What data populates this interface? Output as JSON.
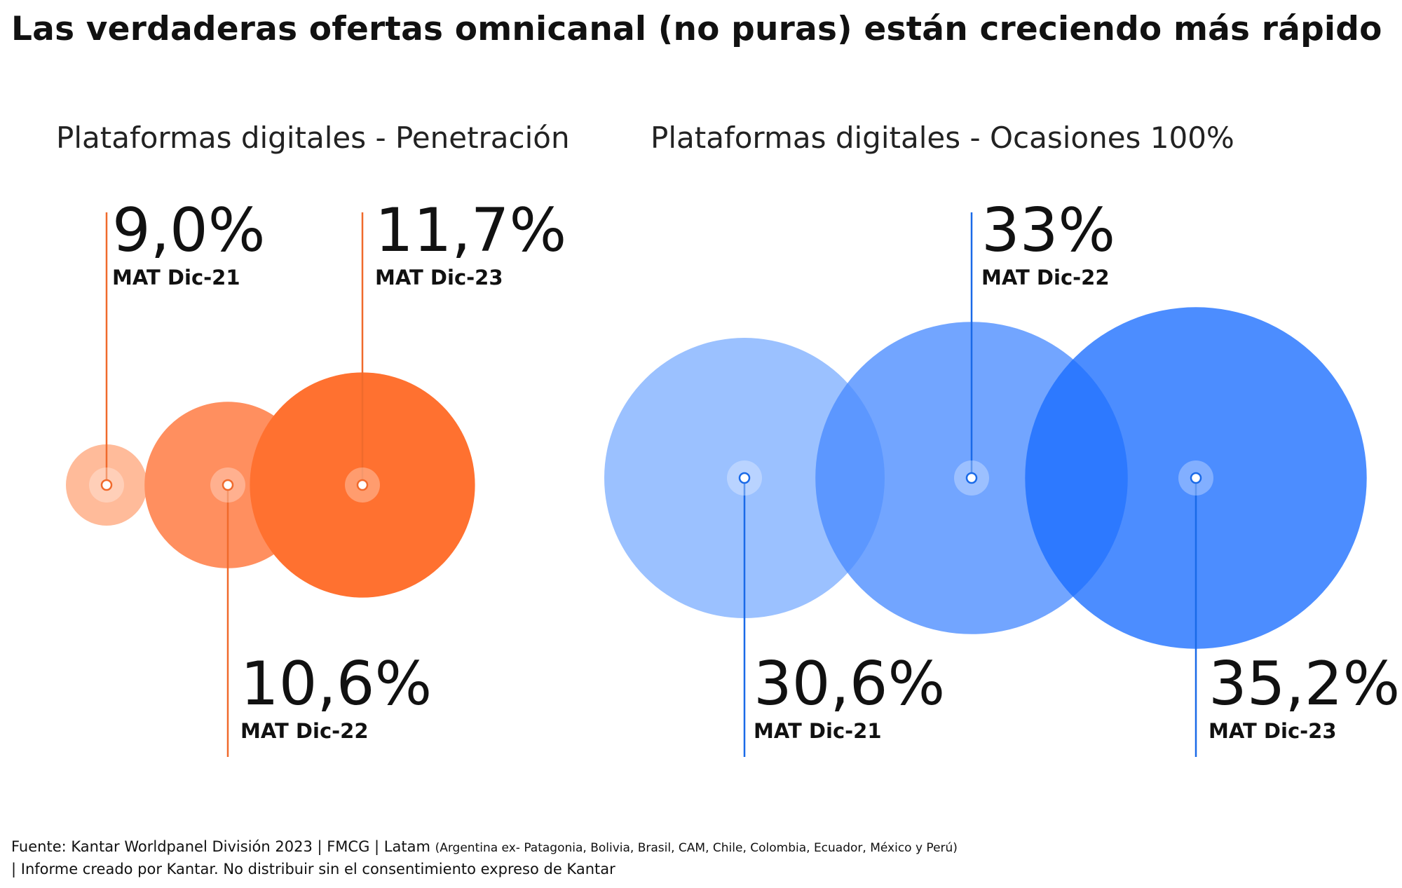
{
  "title": "Las verdaderas ofertas omnicanal (no puras) están creciendo más rápido",
  "colors": {
    "orange": [
      "#ffbb9a",
      "#ff8f5f",
      "#ff7130"
    ],
    "orange_line": "#f06a2c",
    "blue": [
      "#7fb0ff",
      "#4a8cff",
      "#1a6dff"
    ],
    "blue_line": "#1a6ae8"
  },
  "chart_data": [
    {
      "type": "bubble",
      "title": "Plataformas digitales - Penetración",
      "categories": [
        "MAT Dic-21",
        "MAT Dic-22",
        "MAT Dic-23"
      ],
      "values": [
        9.0,
        10.6,
        11.7
      ],
      "labels": [
        "9,0%",
        "10,6%",
        "11,7%"
      ],
      "unit": "%",
      "color": "orange"
    },
    {
      "type": "bubble",
      "title": "Plataformas digitales - Ocasiones 100%",
      "categories": [
        "MAT Dic-21",
        "MAT Dic-22",
        "MAT Dic-23"
      ],
      "values": [
        30.6,
        33,
        35.2
      ],
      "labels": [
        "30,6%",
        "33%",
        "35,2%"
      ],
      "unit": "%",
      "color": "blue"
    }
  ],
  "footer": {
    "line1_main": "Fuente: Kantar Worldpanel División 2023 | FMCG | Latam ",
    "line1_small": "(Argentina ex- Patagonia, Bolivia, Brasil, CAM, Chile, Colombia, Ecuador, México y Perú)",
    "line2": "| Informe creado por Kantar. No distribuir sin el consentimiento expreso de Kantar"
  }
}
